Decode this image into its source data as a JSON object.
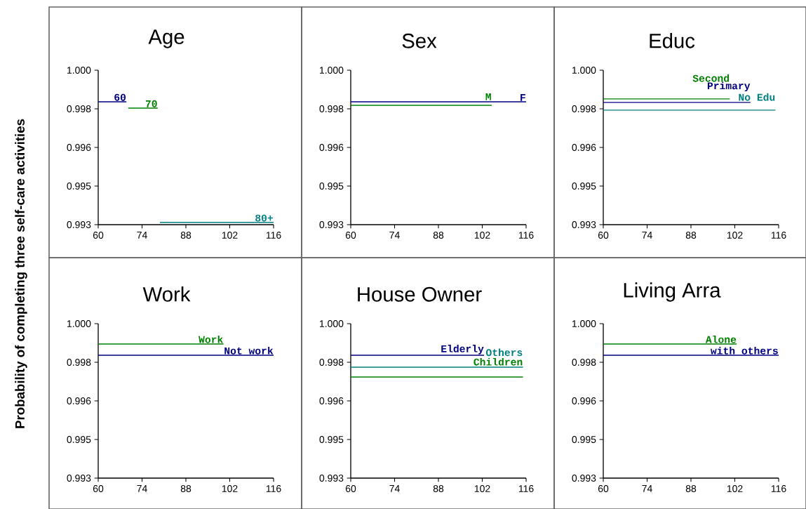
{
  "chart_data": [
    {
      "type": "line",
      "title": "Age",
      "ylabel": "Probability of completing three self-care activities",
      "xlim": [
        60,
        116
      ],
      "xticks": [
        60,
        74,
        88,
        102,
        116
      ],
      "ylim": [
        0.993,
        1.0
      ],
      "yticks": [
        {
          "value": 0.993,
          "label": "0.993"
        },
        {
          "value": 0.99475,
          "label": "0.995"
        },
        {
          "value": 0.9965,
          "label": "0.996"
        },
        {
          "value": 0.99825,
          "label": "0.998"
        },
        {
          "value": 1.0,
          "label": "1.000"
        }
      ],
      "series": [
        {
          "name": "60",
          "color": "#000080",
          "x": [
            60,
            69
          ],
          "values": [
            0.99857,
            0.99857
          ]
        },
        {
          "name": "70",
          "color": "#008000",
          "x": [
            69.6,
            79
          ],
          "values": [
            0.99828,
            0.99828
          ]
        },
        {
          "name": "80+",
          "color": "#008080",
          "x": [
            79.7,
            116
          ],
          "values": [
            0.9931,
            0.9931
          ]
        }
      ]
    },
    {
      "type": "line",
      "title": "Sex",
      "xlim": [
        60,
        116
      ],
      "xticks": [
        60,
        74,
        88,
        102,
        116
      ],
      "ylim": [
        0.993,
        1.0
      ],
      "yticks": [
        {
          "value": 0.993,
          "label": "0.993"
        },
        {
          "value": 0.99475,
          "label": "0.995"
        },
        {
          "value": 0.9965,
          "label": "0.996"
        },
        {
          "value": 0.99825,
          "label": "0.998"
        },
        {
          "value": 1.0,
          "label": "1.000"
        }
      ],
      "series": [
        {
          "name": "F",
          "color": "#000080",
          "x": [
            60,
            116
          ],
          "values": [
            0.99857,
            0.99857
          ]
        },
        {
          "name": "M",
          "color": "#008000",
          "x": [
            60,
            105
          ],
          "values": [
            0.99841,
            0.99841
          ]
        }
      ]
    },
    {
      "type": "line",
      "title": "Educ",
      "xlim": [
        60,
        116
      ],
      "xticks": [
        60,
        74,
        88,
        102,
        116
      ],
      "ylim": [
        0.993,
        1.0
      ],
      "yticks": [
        {
          "value": 0.993,
          "label": "0.993"
        },
        {
          "value": 0.99475,
          "label": "0.995"
        },
        {
          "value": 0.9965,
          "label": "0.996"
        },
        {
          "value": 0.99825,
          "label": "0.998"
        },
        {
          "value": 1.0,
          "label": "1.000"
        }
      ],
      "series": [
        {
          "name": "Primary",
          "color": "#000080",
          "x": [
            60,
            107
          ],
          "values": [
            0.99854,
            0.99854
          ]
        },
        {
          "name": "Second",
          "color": "#008000",
          "x": [
            60,
            100.4
          ],
          "values": [
            0.9987,
            0.9987
          ]
        },
        {
          "name": "No Edu",
          "color": "#008080",
          "x": [
            60,
            115
          ],
          "values": [
            0.99819,
            0.99819
          ]
        }
      ]
    },
    {
      "type": "line",
      "title": "Work",
      "xlim": [
        60,
        116
      ],
      "xticks": [
        60,
        74,
        88,
        102,
        116
      ],
      "ylim": [
        0.993,
        1.0
      ],
      "yticks": [
        {
          "value": 0.993,
          "label": "0.993"
        },
        {
          "value": 0.99475,
          "label": "0.995"
        },
        {
          "value": 0.9965,
          "label": "0.996"
        },
        {
          "value": 0.99825,
          "label": "0.998"
        },
        {
          "value": 1.0,
          "label": "1.000"
        }
      ],
      "series": [
        {
          "name": "Not work",
          "color": "#000080",
          "x": [
            60,
            116
          ],
          "values": [
            0.99857,
            0.99857
          ]
        },
        {
          "name": "Work",
          "color": "#008000",
          "x": [
            60,
            100
          ],
          "values": [
            0.99908,
            0.99908
          ]
        }
      ]
    },
    {
      "type": "line",
      "title": "House Owner",
      "xlim": [
        60,
        116
      ],
      "xticks": [
        60,
        74,
        88,
        102,
        116
      ],
      "ylim": [
        0.993,
        1.0
      ],
      "yticks": [
        {
          "value": 0.993,
          "label": "0.993"
        },
        {
          "value": 0.99475,
          "label": "0.995"
        },
        {
          "value": 0.9965,
          "label": "0.996"
        },
        {
          "value": 0.99825,
          "label": "0.998"
        },
        {
          "value": 1.0,
          "label": "1.000"
        }
      ],
      "series": [
        {
          "name": "Elderly",
          "color": "#000080",
          "x": [
            60,
            102.6
          ],
          "values": [
            0.99857,
            0.99857
          ]
        },
        {
          "name": "Children",
          "color": "#008000",
          "x": [
            60,
            115
          ],
          "values": [
            0.99758,
            0.99758
          ]
        },
        {
          "name": "Others",
          "color": "#008080",
          "x": [
            60,
            115
          ],
          "values": [
            0.99803,
            0.99803
          ]
        }
      ]
    },
    {
      "type": "line",
      "title": "Living Arra",
      "xlim": [
        60,
        116
      ],
      "xticks": [
        60,
        74,
        88,
        102,
        116
      ],
      "ylim": [
        0.993,
        1.0
      ],
      "yticks": [
        {
          "value": 0.993,
          "label": "0.993"
        },
        {
          "value": 0.99475,
          "label": "0.995"
        },
        {
          "value": 0.9965,
          "label": "0.996"
        },
        {
          "value": 0.99825,
          "label": "0.998"
        },
        {
          "value": 1.0,
          "label": "1.000"
        }
      ],
      "series": [
        {
          "name": "with others",
          "color": "#000080",
          "x": [
            60,
            116
          ],
          "values": [
            0.99857,
            0.99857
          ]
        },
        {
          "name": "Alone",
          "color": "#008000",
          "x": [
            60,
            102.6
          ],
          "values": [
            0.99908,
            0.99908
          ]
        }
      ]
    }
  ]
}
